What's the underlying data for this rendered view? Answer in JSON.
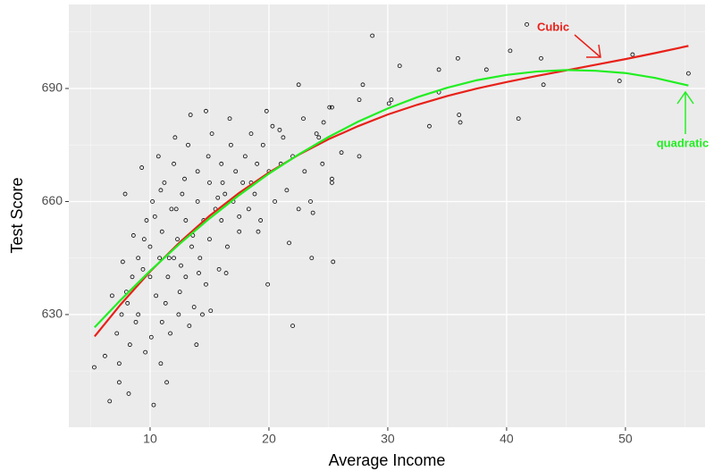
{
  "chart_data": {
    "type": "scatter",
    "x_label": "Average Income",
    "y_label": "Test Score",
    "xlim": [
      3.16,
      56.7
    ],
    "ylim": [
      600.1,
      712.3
    ],
    "xticks": [
      10,
      20,
      30,
      40,
      50
    ],
    "yticks": [
      630,
      660,
      690
    ],
    "grid": true,
    "points": {
      "color": "#000000",
      "x": [
        41.7,
        28.7,
        40.3,
        42.9,
        50.6,
        35.9,
        55.3,
        49.5,
        43.1,
        38.3,
        34.3,
        31,
        27.9,
        30.1,
        30.3,
        34.3,
        33.5,
        36.1,
        36,
        41,
        22.5,
        25.1,
        25.3,
        27.6,
        27.6,
        25.3,
        25.3,
        25.4,
        23.6,
        22,
        19.9,
        10.3,
        6.6,
        11.4,
        8.2,
        5.3,
        7.4,
        7.4,
        6.2,
        8,
        8.5,
        9,
        9,
        9.5,
        9.7,
        10,
        10,
        10.2,
        10.5,
        10.8,
        11,
        11,
        11.2,
        11.5,
        11.8,
        12,
        12,
        12.3,
        12.5,
        12.7,
        13,
        13,
        13.2,
        13.5,
        13.7,
        14,
        14,
        14.2,
        14.5,
        14.7,
        15,
        15,
        15.2,
        15.5,
        15.8,
        16,
        16,
        16.3,
        16.5,
        16.8,
        17,
        17.2,
        17.5,
        17.8,
        18,
        18.3,
        18.5,
        18.8,
        19,
        19.3,
        19.5,
        20,
        20.3,
        20.5,
        21,
        21.5,
        22,
        22.5,
        23,
        23.5,
        24,
        24.5,
        13.4,
        14.7,
        16.7,
        12.1,
        10.7,
        9.3,
        7.9,
        6.8,
        7.2,
        7.6,
        8.3,
        8.8,
        9.6,
        10.1,
        10.9,
        11.7,
        12.4,
        13.3,
        14.4,
        15.1,
        13.9,
        18.5,
        19.8,
        21.2,
        21.7,
        23.7,
        24.2,
        26.1,
        17.5,
        16.1,
        10.4,
        11.6,
        12.9,
        14.9,
        15.7,
        9.4,
        8.6,
        10.9,
        12.2,
        13.6,
        14.1,
        7.7,
        8.1,
        11.3,
        12.6,
        16.4,
        19.1,
        20.9,
        22.9,
        24.6
      ],
      "y": [
        707,
        704,
        700,
        698,
        699,
        698,
        694,
        692,
        691,
        695,
        695,
        696,
        691,
        686,
        687,
        689,
        680,
        681,
        683,
        682,
        691,
        685,
        685,
        687,
        672,
        666,
        665,
        644,
        645,
        627,
        638,
        606,
        607,
        612,
        609,
        616,
        617,
        612,
        619,
        636,
        640,
        645,
        630,
        650,
        655,
        640,
        648,
        660,
        635,
        645,
        652,
        628,
        665,
        640,
        658,
        645,
        670,
        650,
        636,
        662,
        655,
        640,
        675,
        648,
        632,
        660,
        668,
        645,
        655,
        638,
        665,
        650,
        678,
        658,
        642,
        670,
        655,
        662,
        648,
        675,
        660,
        668,
        652,
        665,
        672,
        658,
        678,
        662,
        670,
        655,
        675,
        668,
        680,
        660,
        670,
        663,
        672,
        658,
        668,
        660,
        678,
        670,
        683,
        684,
        682,
        677,
        672,
        669,
        662,
        635,
        625,
        630,
        622,
        628,
        620,
        624,
        617,
        625,
        630,
        627,
        630,
        631,
        622,
        665,
        684,
        677,
        649,
        657,
        677,
        673,
        656,
        665,
        656,
        645,
        666,
        672,
        661,
        642,
        651,
        663,
        658,
        651,
        641,
        644,
        633,
        633,
        643,
        641,
        652,
        679,
        682,
        681
      ]
    },
    "series": [
      {
        "name": "Cubic",
        "color": "#e8211a",
        "x": [
          5.33,
          7.5,
          10,
          12.5,
          15,
          17.5,
          20,
          22.5,
          25,
          27.5,
          30,
          32.5,
          35,
          37.5,
          40,
          42.5,
          45,
          47.5,
          50,
          52.5,
          55.3
        ],
        "values": [
          624.2,
          632.6,
          641.4,
          649.2,
          656.2,
          662.3,
          667.7,
          672.4,
          676.5,
          680.0,
          683.1,
          685.7,
          688.0,
          690.0,
          691.7,
          693.3,
          694.8,
          696.3,
          697.8,
          699.4,
          701.3
        ]
      },
      {
        "name": "quadratic",
        "color": "#22ee22",
        "x": [
          5.33,
          7.5,
          10,
          12.5,
          15,
          17.5,
          20,
          22.5,
          25,
          27.5,
          30,
          32.5,
          35,
          37.5,
          40,
          42.5,
          45,
          47.5,
          50,
          52.5,
          55.3
        ],
        "values": [
          626.6,
          633.8,
          641.6,
          648.8,
          655.5,
          661.7,
          667.4,
          672.5,
          677.1,
          681.2,
          684.7,
          687.7,
          690.2,
          692.2,
          693.6,
          694.5,
          694.9,
          694.7,
          694.1,
          692.8,
          690.8
        ]
      }
    ]
  }
}
